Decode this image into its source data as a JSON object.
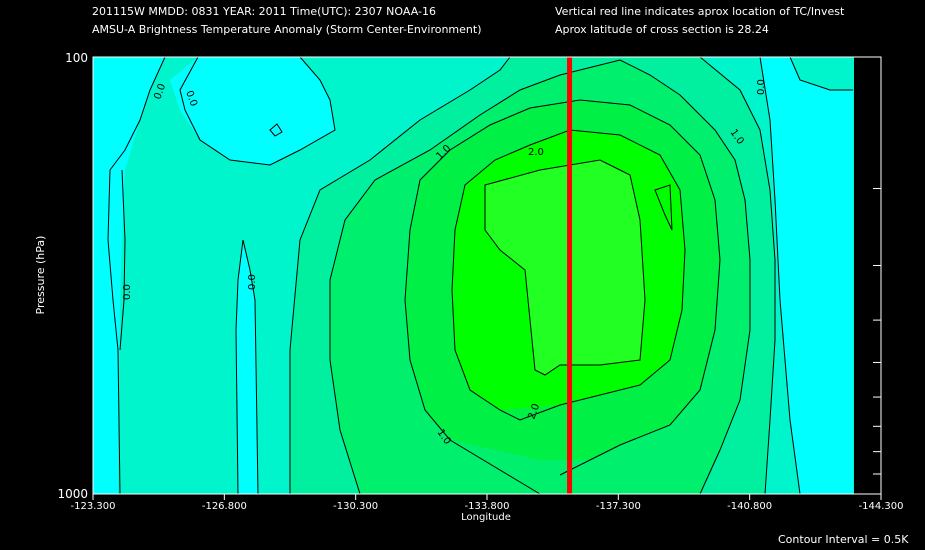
{
  "header": {
    "line1_left": "201115W  MMDD: 0831 YEAR: 2011 Time(UTC): 2307 NOAA-16",
    "line2_left": "AMSU-A Brightness Temperature Anomaly (Storm Center-Environment)",
    "line1_right": "Vertical red line indicates aprox location of TC/Invest",
    "line2_right": "Aprox latitude of cross section is 28.24"
  },
  "footer": {
    "contour_interval": "Contour Interval = 0.5K"
  },
  "chart_data": {
    "type": "heatmap",
    "xlabel": "Longitude",
    "ylabel": "Pressure (hPa)",
    "xlim": [
      -123.3,
      -144.3
    ],
    "ylim": [
      1000,
      100
    ],
    "y_scale": "log",
    "x_ticks": [
      -123.3,
      -126.8,
      -130.3,
      -133.8,
      -137.3,
      -140.8,
      -144.3
    ],
    "x_tick_labels": [
      "-123.300",
      "-126.800",
      "-130.300",
      "-133.800",
      "-137.300",
      "-140.800",
      "-144.300"
    ],
    "y_tick_labels": [
      "100",
      "1000"
    ],
    "right_minor_ticks_hpa": [
      200,
      300,
      400,
      500,
      600,
      700,
      800,
      900
    ],
    "storm_longitude": -136.0,
    "storm_line_color": "#ff0000",
    "contour_interval_k": 0.5,
    "contour_labels": [
      "0.0",
      "1.0",
      "2.0"
    ],
    "fill_colors": {
      "below_0": "#00ffff",
      "0_to_0.5": "#00f5cc",
      "0.5_to_1.0": "#00f0a0",
      "1.0_to_1.5": "#00f06e",
      "1.5_to_2.0": "#00f046",
      "above_2.0": "#00ff00"
    },
    "max_anomaly_region": "approx 2.0-2.5 K between -134.5 and -137.5, 170-750 hPa"
  }
}
